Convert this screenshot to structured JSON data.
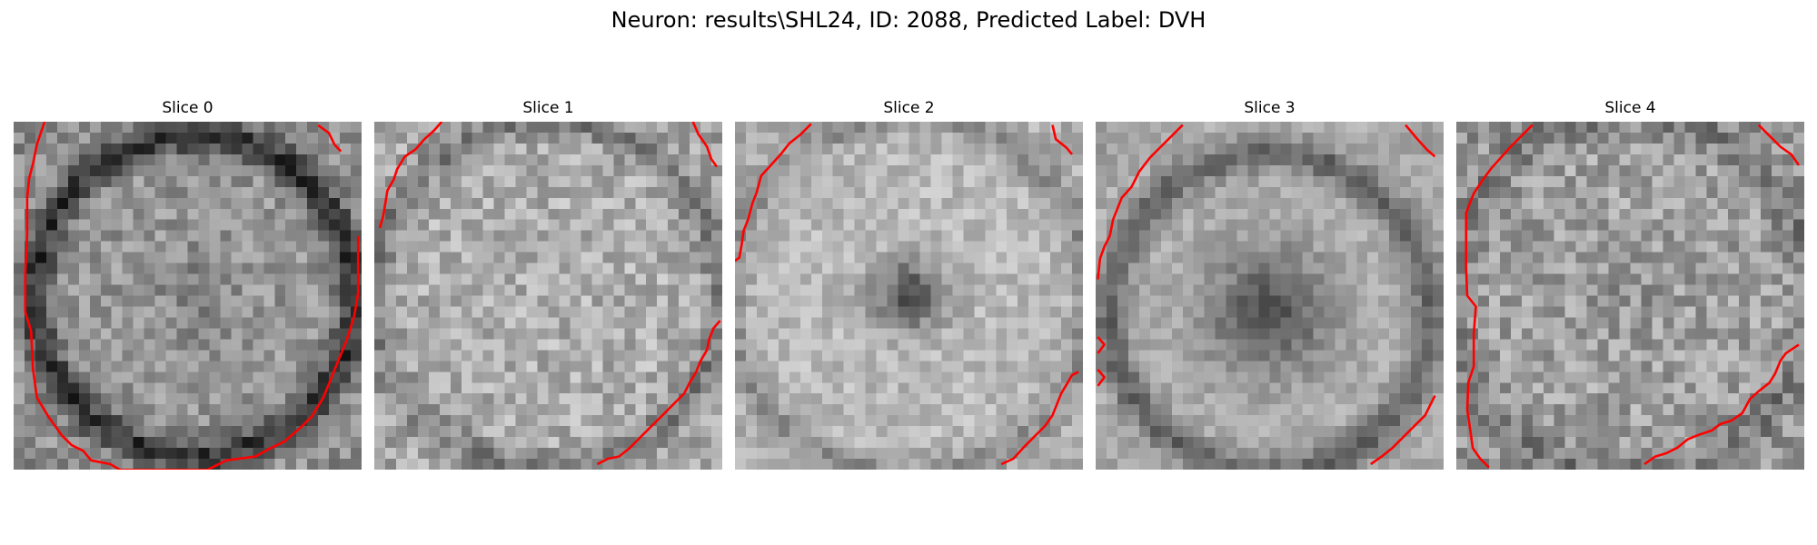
{
  "figure": {
    "title": "Neuron: results\\SHL24, ID: 2088, Predicted Label: DVH"
  },
  "slices": [
    {
      "label": "Slice 0"
    },
    {
      "label": "Slice 1"
    },
    {
      "label": "Slice 2"
    },
    {
      "label": "Slice 3"
    },
    {
      "label": "Slice 4"
    }
  ],
  "colors": {
    "contour": "#ff0000",
    "background": "#ffffff"
  }
}
